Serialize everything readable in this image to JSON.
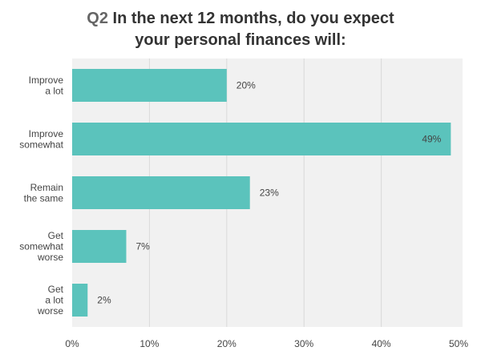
{
  "chart_data": {
    "type": "bar",
    "orientation": "horizontal",
    "title_prefix": "Q2",
    "title_line1": "In the next 12 months, do you expect",
    "title_line2": "your personal finances will:",
    "categories": [
      [
        "Improve",
        "a lot"
      ],
      [
        "Improve",
        "somewhat"
      ],
      [
        "Remain",
        "the same"
      ],
      [
        "Get",
        "somewhat",
        "worse"
      ],
      [
        "Get",
        "a lot",
        "worse"
      ]
    ],
    "values": [
      20,
      49,
      23,
      7,
      2
    ],
    "value_labels": [
      "20%",
      "49%",
      "23%",
      "7%",
      "2%"
    ],
    "xlim": [
      0,
      50
    ],
    "xticks": [
      0,
      10,
      20,
      30,
      40,
      50
    ],
    "xtick_labels": [
      "0%",
      "10%",
      "20%",
      "30%",
      "40%",
      "50%"
    ],
    "xlabel": "",
    "ylabel": "",
    "grid": true,
    "colors": {
      "bar": "#5BC3BC",
      "plot_bg": "#F1F1F1",
      "grid": "#DADADA",
      "text": "#444444"
    }
  }
}
